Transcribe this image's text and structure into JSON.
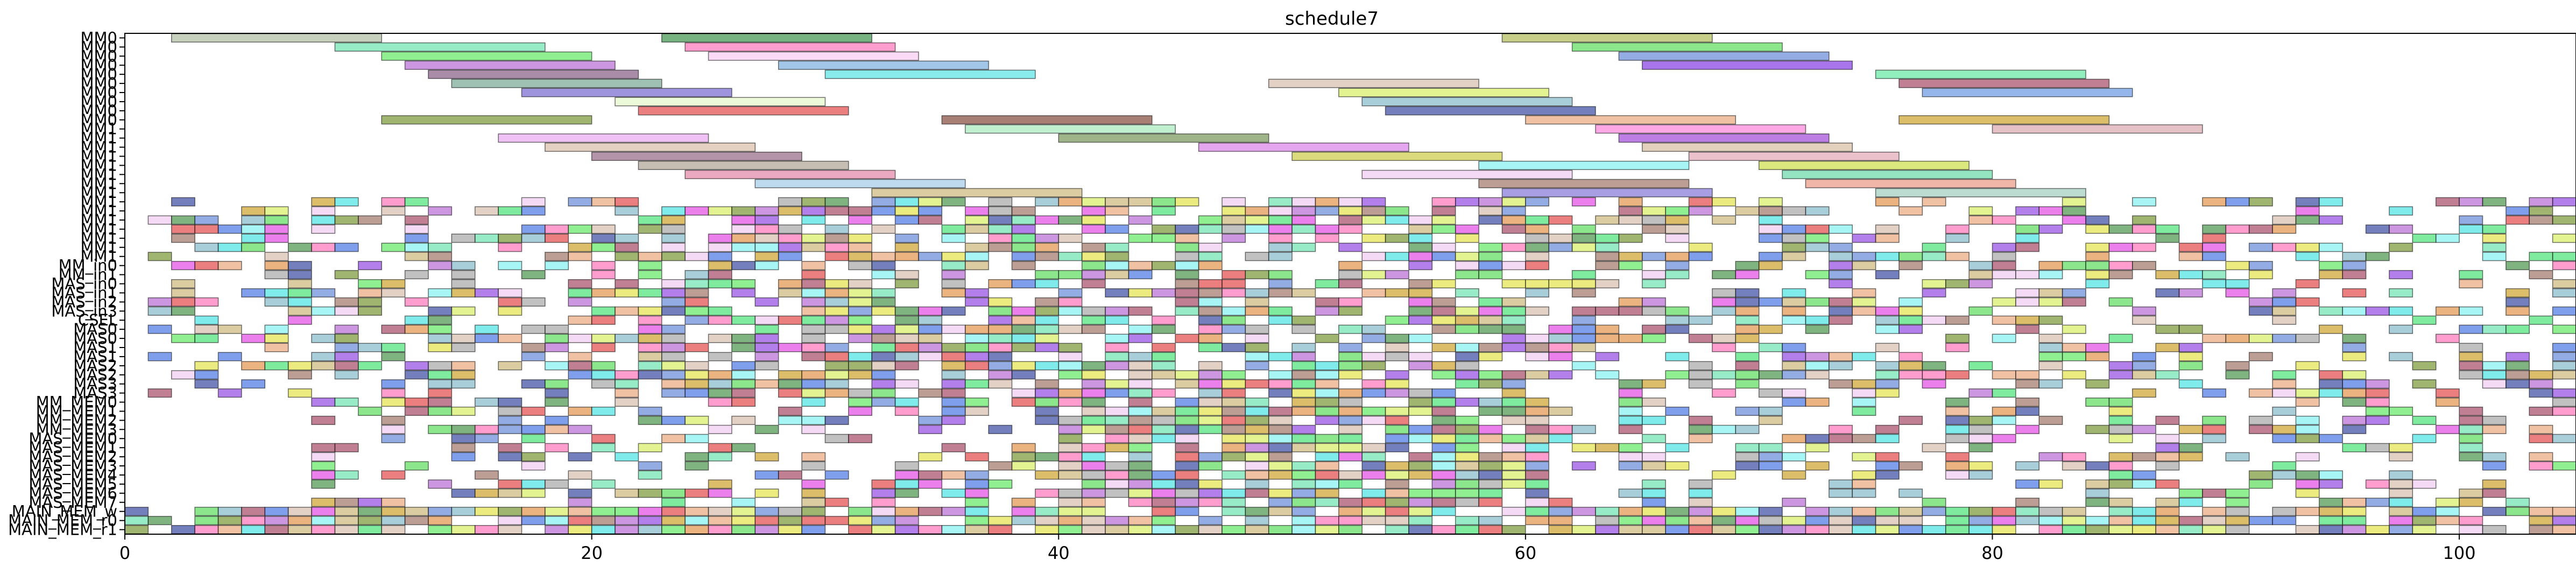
{
  "chart_data": {
    "type": "bar",
    "subtype": "gantt",
    "title": "schedule7",
    "xlabel": "",
    "ylabel": "",
    "xlim": [
      0,
      105
    ],
    "xticks": [
      0,
      20,
      40,
      60,
      80,
      100
    ],
    "grid": false,
    "rows": [
      "MM0",
      "MM0",
      "MM0",
      "MM0",
      "MM0",
      "MM0",
      "MM0",
      "MM0",
      "MM0",
      "MM0",
      "MM1",
      "MM1",
      "MM1",
      "MM1",
      "MM1",
      "MM1",
      "MM1",
      "MM1",
      "MM1",
      "MM1",
      "MM1",
      "MM1",
      "MM1",
      "MM1",
      "MM1",
      "MM_in0",
      "MM_in1",
      "MAS_in0",
      "MAS_in1",
      "MAS_in2",
      "MAS_in3",
      "CSEL",
      "MAS0",
      "MAS0",
      "MAS1",
      "MAS1",
      "MAS2",
      "MAS2",
      "MAS3",
      "MAS3",
      "MM_MEM0",
      "MM_MEM1",
      "MM_MEM2",
      "MM_MEM3",
      "MAS_MEM0",
      "MAS_MEM1",
      "MAS_MEM2",
      "MAS_MEM3",
      "MAS_MEM4",
      "MAS_MEM5",
      "MAS_MEM6",
      "MAS_MEM7",
      "MAIN_MEM_w",
      "MAIN_MEM_r0",
      "MAIN_MEM_r1"
    ],
    "tasks": [
      {
        "row": 0,
        "start": 2,
        "end": 11,
        "color": "#a9b79a"
      },
      {
        "row": 0,
        "start": 23,
        "end": 32,
        "color": "#2e8b3e"
      },
      {
        "row": 0,
        "start": 59,
        "end": 68,
        "color": "#a8b446"
      },
      {
        "row": 1,
        "start": 9,
        "end": 18,
        "color": "#5fe0a8"
      },
      {
        "row": 1,
        "start": 24,
        "end": 33,
        "color": "#ff69b4"
      },
      {
        "row": 1,
        "start": 62,
        "end": 71,
        "color": "#4fd94f"
      },
      {
        "row": 2,
        "start": 11,
        "end": 20,
        "color": "#55e655"
      },
      {
        "row": 2,
        "start": 25,
        "end": 34,
        "color": "#f7c6f0"
      },
      {
        "row": 2,
        "start": 64,
        "end": 73,
        "color": "#5a7fd6"
      },
      {
        "row": 3,
        "start": 12,
        "end": 21,
        "color": "#b060d0"
      },
      {
        "row": 3,
        "start": 28,
        "end": 37,
        "color": "#6fa8dc"
      },
      {
        "row": 3,
        "start": 65,
        "end": 74,
        "color": "#7b2be0"
      },
      {
        "row": 4,
        "start": 13,
        "end": 22,
        "color": "#7a4f7a"
      },
      {
        "row": 4,
        "start": 30,
        "end": 39,
        "color": "#49e0e0"
      },
      {
        "row": 4,
        "start": 75,
        "end": 84,
        "color": "#55e69a"
      },
      {
        "row": 5,
        "start": 14,
        "end": 23,
        "color": "#6aa08a"
      },
      {
        "row": 5,
        "start": 49,
        "end": 58,
        "color": "#d4b8a6"
      },
      {
        "row": 5,
        "start": 76,
        "end": 85,
        "color": "#a03a5a"
      },
      {
        "row": 6,
        "start": 17,
        "end": 26,
        "color": "#6a5acd"
      },
      {
        "row": 6,
        "start": 52,
        "end": 61,
        "color": "#d6ec58"
      },
      {
        "row": 6,
        "start": 77,
        "end": 86,
        "color": "#5b8fe0"
      },
      {
        "row": 7,
        "start": 21,
        "end": 30,
        "color": "#e4f7c6"
      },
      {
        "row": 7,
        "start": 53,
        "end": 62,
        "color": "#7ab4c4"
      },
      {
        "row": 8,
        "start": 22,
        "end": 31,
        "color": "#e03a3a"
      },
      {
        "row": 8,
        "start": 54,
        "end": 63,
        "color": "#2a3a9a"
      },
      {
        "row": 9,
        "start": 11,
        "end": 20,
        "color": "#6b8e23"
      },
      {
        "row": 9,
        "start": 35,
        "end": 44,
        "color": "#7a3a2a"
      },
      {
        "row": 9,
        "start": 60,
        "end": 69,
        "color": "#e8a070"
      },
      {
        "row": 9,
        "start": 76,
        "end": 85,
        "color": "#c89a1a"
      },
      {
        "row": 10,
        "start": 36,
        "end": 45,
        "color": "#a0e8b8"
      },
      {
        "row": 10,
        "start": 63,
        "end": 72,
        "color": "#ff7ad8"
      },
      {
        "row": 10,
        "start": 80,
        "end": 89,
        "color": "#d4a0a6"
      },
      {
        "row": 11,
        "start": 16,
        "end": 25,
        "color": "#e6a0f0"
      },
      {
        "row": 11,
        "start": 40,
        "end": 49,
        "color": "#6b8e4a"
      },
      {
        "row": 11,
        "start": 64,
        "end": 73,
        "color": "#9a3ad6"
      },
      {
        "row": 12,
        "start": 18,
        "end": 27,
        "color": "#d6b8a0"
      },
      {
        "row": 12,
        "start": 46,
        "end": 55,
        "color": "#d678e6"
      },
      {
        "row": 12,
        "start": 65,
        "end": 74,
        "color": "#d6b89a"
      },
      {
        "row": 13,
        "start": 20,
        "end": 29,
        "color": "#8a5a7a"
      },
      {
        "row": 13,
        "start": 50,
        "end": 59,
        "color": "#c8c838"
      },
      {
        "row": 13,
        "start": 67,
        "end": 76,
        "color": "#e0a0b0"
      },
      {
        "row": 14,
        "start": 22,
        "end": 31,
        "color": "#a89a8a"
      },
      {
        "row": 14,
        "start": 58,
        "end": 67,
        "color": "#78f0f0"
      },
      {
        "row": 14,
        "start": 70,
        "end": 79,
        "color": "#c8dc38"
      },
      {
        "row": 15,
        "start": 24,
        "end": 33,
        "color": "#e07aa0"
      },
      {
        "row": 15,
        "start": 53,
        "end": 62,
        "color": "#f0c6f0"
      },
      {
        "row": 15,
        "start": 71,
        "end": 80,
        "color": "#5ad6a0"
      },
      {
        "row": 16,
        "start": 27,
        "end": 36,
        "color": "#9ac6e6"
      },
      {
        "row": 16,
        "start": 58,
        "end": 67,
        "color": "#9a6a5a"
      },
      {
        "row": 16,
        "start": 72,
        "end": 81,
        "color": "#e8907a"
      },
      {
        "row": 17,
        "start": 32,
        "end": 41,
        "color": "#c8b070"
      },
      {
        "row": 17,
        "start": 59,
        "end": 68,
        "color": "#7a6ad6"
      },
      {
        "row": 17,
        "start": 75,
        "end": 84,
        "color": "#9acab8"
      }
    ],
    "small_blocks": {
      "description_rows": [
        18,
        54
      ],
      "duration": 1
    }
  }
}
